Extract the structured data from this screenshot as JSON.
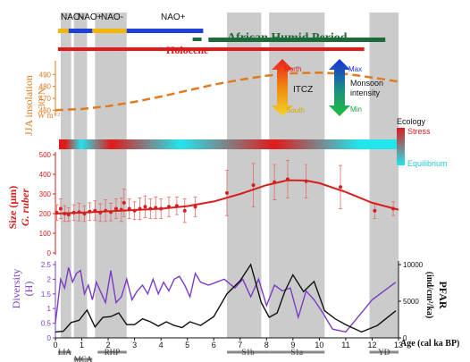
{
  "chart_data": [
    {
      "type": "timeline",
      "name_top": "climate-periods",
      "bars": [
        {
          "label": "NAO-",
          "from": 0.1,
          "to": 0.5,
          "color": "#f2b705"
        },
        {
          "label": "NAO+",
          "from": 0.5,
          "to": 1.4,
          "color": "#1f3fd9"
        },
        {
          "label": "NAO-",
          "from": 1.4,
          "to": 2.7,
          "color": "#f2b705"
        },
        {
          "label": "NAO+",
          "from": 2.7,
          "to": 5.6,
          "color": "#1f3fd9"
        },
        {
          "label": "African Humid Period",
          "from": 5.8,
          "to": 12.5,
          "color": "#1e6b3a"
        },
        {
          "label": "Holocene",
          "from": 0.1,
          "to": 11.7,
          "color": "#e01a1a"
        }
      ],
      "labels": {
        "nao_minus_1": "NAO-",
        "nao_plus_1": "NAO+",
        "nao_minus_2": "NAO-",
        "nao_plus_2": "NAO+",
        "ahp": "African Humid Period",
        "holocene": "Holocene"
      }
    },
    {
      "type": "line",
      "ylabel_1": "JJA insolation",
      "ylabel_2": "30°N",
      "unit": "W m⁻²",
      "ylim": [
        455,
        500
      ],
      "yticks": [
        "490",
        "480",
        "470",
        "460"
      ],
      "x": [
        0,
        1,
        2,
        3,
        4,
        5,
        6,
        7,
        8,
        9,
        10,
        11,
        12,
        13
      ],
      "values": [
        460,
        461,
        463.5,
        467,
        471.5,
        476.5,
        481.5,
        485.5,
        489,
        491,
        491.5,
        490.5,
        487.5,
        484
      ],
      "color": "#e07b1f",
      "itcz": {
        "top": "North",
        "bottom": "South",
        "label": "ITCZ"
      },
      "monsoon": {
        "top": "Max",
        "bottom": "Min",
        "label_1": "Monsoon",
        "label_2": "intensity"
      }
    },
    {
      "type": "heatmap",
      "title": "Ecology",
      "legend_top": "Stress",
      "legend_bottom": "Equilibrium",
      "segments": [
        {
          "from": 0,
          "to": 0.5,
          "state": "Stress"
        },
        {
          "from": 0.5,
          "to": 1.2,
          "state": "Equilibrium"
        },
        {
          "from": 1.2,
          "to": 2.8,
          "state": "Stress"
        },
        {
          "from": 2.8,
          "to": 6.5,
          "state": "Equilibrium"
        },
        {
          "from": 6.5,
          "to": 10.0,
          "state": "Stress"
        },
        {
          "from": 10.0,
          "to": 13,
          "state": "Equilibrium"
        }
      ]
    },
    {
      "type": "scatter",
      "ylabel_1": "Size (µm)",
      "ylabel_2": "G. ruber",
      "ylim": [
        0,
        500
      ],
      "yticks": [
        "500",
        "400",
        "300",
        "200",
        "100",
        "0"
      ],
      "color": "#d61f1f",
      "points": [
        {
          "x": 0.05,
          "y": 205,
          "err": 40
        },
        {
          "x": 0.2,
          "y": 225,
          "err": 50
        },
        {
          "x": 0.35,
          "y": 200,
          "err": 40
        },
        {
          "x": 0.5,
          "y": 195,
          "err": 35
        },
        {
          "x": 0.7,
          "y": 205,
          "err": 40
        },
        {
          "x": 0.9,
          "y": 208,
          "err": 45
        },
        {
          "x": 1.1,
          "y": 200,
          "err": 40
        },
        {
          "x": 1.3,
          "y": 210,
          "err": 45
        },
        {
          "x": 1.5,
          "y": 215,
          "err": 50
        },
        {
          "x": 1.7,
          "y": 205,
          "err": 45
        },
        {
          "x": 1.9,
          "y": 215,
          "err": 55
        },
        {
          "x": 2.1,
          "y": 208,
          "err": 45
        },
        {
          "x": 2.3,
          "y": 225,
          "err": 50
        },
        {
          "x": 2.5,
          "y": 220,
          "err": 60
        },
        {
          "x": 2.6,
          "y": 255,
          "err": 70
        },
        {
          "x": 2.8,
          "y": 225,
          "err": 50
        },
        {
          "x": 3.0,
          "y": 215,
          "err": 45
        },
        {
          "x": 3.2,
          "y": 225,
          "err": 55
        },
        {
          "x": 3.4,
          "y": 235,
          "err": 55
        },
        {
          "x": 3.6,
          "y": 225,
          "err": 50
        },
        {
          "x": 3.8,
          "y": 230,
          "err": 55
        },
        {
          "x": 4.0,
          "y": 225,
          "err": 50
        },
        {
          "x": 4.3,
          "y": 235,
          "err": 50
        },
        {
          "x": 4.6,
          "y": 240,
          "err": 45
        },
        {
          "x": 4.9,
          "y": 215,
          "err": 60
        },
        {
          "x": 5.3,
          "y": 235,
          "err": 50
        },
        {
          "x": 6.5,
          "y": 305,
          "err": 115
        },
        {
          "x": 7.5,
          "y": 345,
          "err": 110
        },
        {
          "x": 8.3,
          "y": 360,
          "err": 90
        },
        {
          "x": 8.8,
          "y": 375,
          "err": 95
        },
        {
          "x": 9.5,
          "y": 365,
          "err": 85
        },
        {
          "x": 10.8,
          "y": 335,
          "err": 110
        },
        {
          "x": 12.1,
          "y": 215,
          "err": 40
        },
        {
          "x": 12.8,
          "y": 225,
          "err": 35
        }
      ],
      "trend_x": [
        0,
        1,
        2,
        3,
        4,
        5,
        6,
        7,
        8,
        8.8,
        9.5,
        10,
        11,
        12,
        13
      ],
      "trend_y": [
        200,
        205,
        212,
        218,
        225,
        238,
        262,
        300,
        345,
        370,
        368,
        355,
        310,
        255,
        220
      ]
    },
    {
      "type": "line",
      "ylabel_left_1": "Diversity",
      "ylabel_left_2": "(H)",
      "ylim_left": [
        0,
        2.5
      ],
      "yticks_left": [
        "2.5",
        "2",
        "1.5",
        "1",
        "0.5",
        "0"
      ],
      "ylabel_right_1": "PFAR",
      "ylabel_right_2": "(ind/cm²/ka)",
      "ylim_right": [
        0,
        10000
      ],
      "yticks_right": [
        "10000",
        "5000",
        "0"
      ],
      "xlabel": "Age (cal ka BP)",
      "xlim": [
        0,
        13
      ],
      "xticks": [
        "0",
        "1",
        "2",
        "3",
        "4",
        "5",
        "6",
        "7",
        "8",
        "9",
        "10",
        "11",
        "12",
        "13"
      ],
      "series": [
        {
          "name": "Diversity",
          "axis": "left",
          "color": "#7a3cc4",
          "x": [
            0,
            0.2,
            0.35,
            0.5,
            0.65,
            0.8,
            0.95,
            1.1,
            1.25,
            1.4,
            1.55,
            1.7,
            1.9,
            2.1,
            2.3,
            2.5,
            2.7,
            2.9,
            3.1,
            3.3,
            3.5,
            3.7,
            3.9,
            4.1,
            4.3,
            4.5,
            4.7,
            4.9,
            5.1,
            5.3,
            5.5,
            5.8,
            6.1,
            6.4,
            6.8,
            7.1,
            7.4,
            7.7,
            8.0,
            8.3,
            8.6,
            8.9,
            9.2,
            9.5,
            9.8,
            10.1,
            10.5,
            11.0,
            12.0,
            12.9
          ],
          "values": [
            0.5,
            2.0,
            1.7,
            2.4,
            1.9,
            2.2,
            2.3,
            1.5,
            1.8,
            1.3,
            1.9,
            1.6,
            1.2,
            2.3,
            1.2,
            1.4,
            2.0,
            1.3,
            1.6,
            1.8,
            1.5,
            2.0,
            1.5,
            1.9,
            1.6,
            2.0,
            2.1,
            1.8,
            1.4,
            2.2,
            1.9,
            1.8,
            1.9,
            2.0,
            1.7,
            2.0,
            1.4,
            2.0,
            1.1,
            1.8,
            1.6,
            1.7,
            0.7,
            1.6,
            1.3,
            0.9,
            0.3,
            0.2,
            1.3,
            1.9
          ]
        },
        {
          "name": "PFAR",
          "axis": "right",
          "color": "#111111",
          "x": [
            0,
            0.3,
            0.6,
            0.9,
            1.2,
            1.5,
            1.8,
            2.1,
            2.4,
            2.7,
            3.0,
            3.3,
            3.6,
            3.9,
            4.2,
            4.5,
            4.8,
            5.1,
            5.5,
            6.0,
            6.5,
            7.0,
            7.4,
            7.8,
            8.1,
            8.4,
            8.7,
            9.0,
            9.4,
            9.8,
            10.2,
            10.6,
            11.0,
            11.6,
            12.2,
            12.9
          ],
          "values": [
            800,
            900,
            2100,
            2400,
            3800,
            1500,
            2800,
            2900,
            3400,
            1800,
            1800,
            2600,
            2200,
            1600,
            2200,
            1700,
            1400,
            2200,
            1700,
            2900,
            6000,
            7800,
            10000,
            4800,
            2800,
            3400,
            6400,
            8600,
            6300,
            7700,
            3700,
            2600,
            1800,
            800,
            1700,
            3700
          ]
        }
      ],
      "shaded_intervals": [
        [
          0.2,
          0.6
        ],
        [
          0.7,
          1.2
        ],
        [
          1.5,
          2.7
        ],
        [
          6.5,
          7.8
        ],
        [
          8.1,
          10.2
        ],
        [
          11.9,
          13.0
        ]
      ],
      "periods": [
        {
          "label": "LIA",
          "from": 0.1,
          "to": 0.6
        },
        {
          "label": "MCA",
          "from": 0.7,
          "to": 1.4
        },
        {
          "label": "RHP",
          "from": 1.6,
          "to": 2.7
        },
        {
          "label": "S1b",
          "from": 6.5,
          "to": 8.1
        },
        {
          "label": "S1a",
          "from": 8.1,
          "to": 10.2
        },
        {
          "label": "YD",
          "from": 11.9,
          "to": 13.0
        }
      ]
    }
  ]
}
